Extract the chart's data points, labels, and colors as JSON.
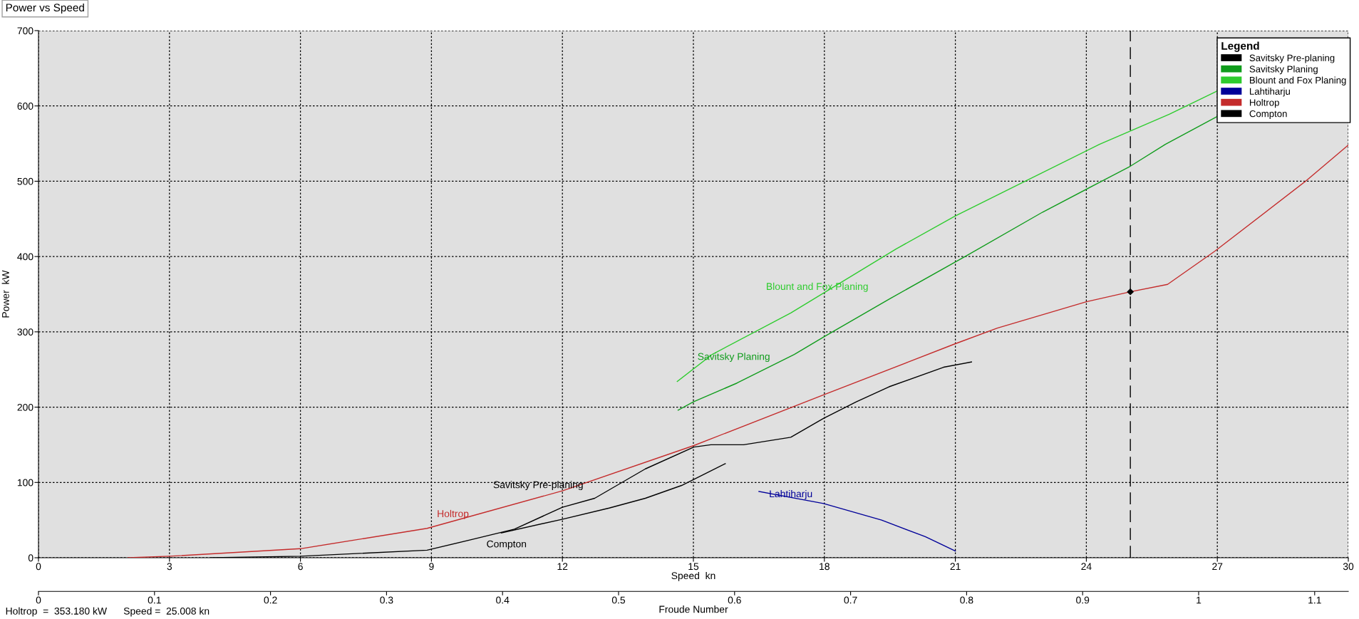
{
  "chart_data": {
    "type": "line",
    "title": "Power vs Speed",
    "xlabel": "Speed  kn",
    "ylabel": "Power  kW",
    "x2label": "Froude Number",
    "legend_title": "Legend",
    "xlim": [
      0,
      30
    ],
    "xticks": [
      0,
      3,
      6,
      9,
      12,
      15,
      18,
      21,
      24,
      27,
      30
    ],
    "ylim": [
      0,
      700
    ],
    "yticks": [
      0,
      100,
      200,
      300,
      400,
      500,
      600,
      700
    ],
    "x2lim": [
      0,
      1.129
    ],
    "x2ticks": [
      0,
      0.1,
      0.2,
      0.3,
      0.4,
      0.5,
      0.6,
      0.7,
      0.8,
      0.9,
      1,
      1.1
    ],
    "grid": true,
    "legend": "top right",
    "marker": "none",
    "line_style": "solid",
    "series": [
      {
        "name": "Savitsky Pre-planing",
        "color": "#000000",
        "x": [
          3.96,
          6,
          8.9,
          9.91,
          10.9,
          12.0,
          12.74,
          13.9,
          15.01,
          15.4,
          16.15,
          17.23,
          17.98,
          18.73,
          19.48,
          20.73,
          21.37
        ],
        "values": [
          0,
          2,
          10,
          24,
          38,
          67,
          79,
          118,
          147,
          150,
          150,
          160,
          185,
          207,
          227,
          253,
          260
        ]
      },
      {
        "name": "Savitsky Planing",
        "color": "#109c1c",
        "x": [
          14.65,
          15.0,
          16.0,
          17.31,
          18.01,
          19.5,
          21.28,
          23.0,
          25.01,
          25.81,
          27.0
        ],
        "values": [
          196,
          207,
          232,
          270,
          294,
          344,
          402,
          459,
          520,
          549,
          586
        ]
      },
      {
        "name": "Blount and Fox Planing",
        "color": "#2ecc2e",
        "x": [
          14.63,
          15.43,
          17.23,
          19.64,
          21.0,
          24.3,
          25.02,
          25.9,
          27.0
        ],
        "values": [
          234,
          270,
          325,
          410,
          454,
          549,
          567,
          589,
          620
        ]
      },
      {
        "name": "Lahtiharju",
        "color": "#000099",
        "x": [
          16.5,
          17.98,
          19.31,
          20.31,
          21.0
        ],
        "values": [
          88,
          72,
          50,
          28,
          9
        ]
      },
      {
        "name": "Holtrop",
        "color": "#c42b2b",
        "x": [
          2.05,
          3,
          6,
          8.9,
          12.01,
          15.01,
          18.01,
          20.99,
          21.96,
          24.0,
          25.008,
          25.86,
          26.94,
          29.02,
          30.0
        ],
        "values": [
          0,
          2,
          12,
          39,
          89,
          149,
          217,
          284,
          305,
          340,
          353.18,
          363,
          407,
          500,
          548
        ]
      },
      {
        "name": "Compton",
        "color": "#000000",
        "x": [
          10.6,
          11.99,
          13.07,
          13.9,
          14.73,
          15.73
        ],
        "values": [
          33,
          51,
          66,
          79,
          96,
          125
        ]
      }
    ],
    "ref_lines": [
      {
        "axis": "x",
        "value": 25.008,
        "color": "#000000",
        "line_style": "dashed"
      }
    ],
    "annotations": [
      "Holtrop  =  353.180 kW      Speed =  25.008 kn"
    ]
  }
}
